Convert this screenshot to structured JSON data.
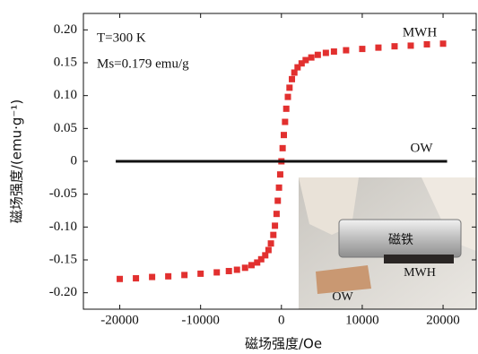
{
  "chart_data": {
    "type": "scatter",
    "y_label": "磁场强度/(emu·g⁻¹)",
    "x_label": "磁场强度/Oe",
    "xlim": [
      -24500,
      24100
    ],
    "ylim": [
      -0.225,
      0.225
    ],
    "xticks": [
      -20000,
      -10000,
      0,
      10000,
      20000
    ],
    "yticks": [
      {
        "value": 0.2,
        "label": "0.20"
      },
      0.15,
      {
        "value": 0.1,
        "label": "0.10"
      },
      0.05,
      0,
      -0.05,
      {
        "value": -0.1,
        "label": "-0.10"
      },
      -0.15,
      {
        "value": -0.2,
        "label": "-0.20"
      }
    ],
    "grid": false,
    "annotations": [
      "T=300 K",
      "Ms=0.179 emu/g",
      "MWH",
      "OW"
    ],
    "inset_labels": [
      "磁铁",
      "MWH",
      "OW"
    ],
    "series": [
      {
        "name": "MWH",
        "style": "markers",
        "color": "#e2302f",
        "x": [
          -20000,
          -18000,
          -16000,
          -14000,
          -12000,
          -10000,
          -8000,
          -6500,
          -5500,
          -4500,
          -3700,
          -3000,
          -2500,
          -2000,
          -1600,
          -1300,
          -1000,
          -800,
          -600,
          -450,
          -300,
          -150,
          0,
          150,
          300,
          450,
          600,
          800,
          1000,
          1300,
          1600,
          2000,
          2500,
          3000,
          3700,
          4500,
          5500,
          6500,
          8000,
          10000,
          12000,
          14000,
          16000,
          18000,
          20000
        ],
        "values": [
          -0.179,
          -0.178,
          -0.176,
          -0.175,
          -0.173,
          -0.171,
          -0.169,
          -0.167,
          -0.165,
          -0.162,
          -0.158,
          -0.154,
          -0.149,
          -0.143,
          -0.135,
          -0.125,
          -0.112,
          -0.098,
          -0.08,
          -0.06,
          -0.04,
          -0.02,
          0,
          0.02,
          0.04,
          0.06,
          0.08,
          0.098,
          0.112,
          0.125,
          0.135,
          0.143,
          0.149,
          0.154,
          0.158,
          0.162,
          0.165,
          0.167,
          0.169,
          0.171,
          0.173,
          0.175,
          0.176,
          0.178,
          0.179
        ]
      },
      {
        "name": "OW",
        "style": "line",
        "color": "#111111",
        "x": [
          -20500,
          20500
        ],
        "values": [
          0,
          0
        ]
      }
    ]
  }
}
